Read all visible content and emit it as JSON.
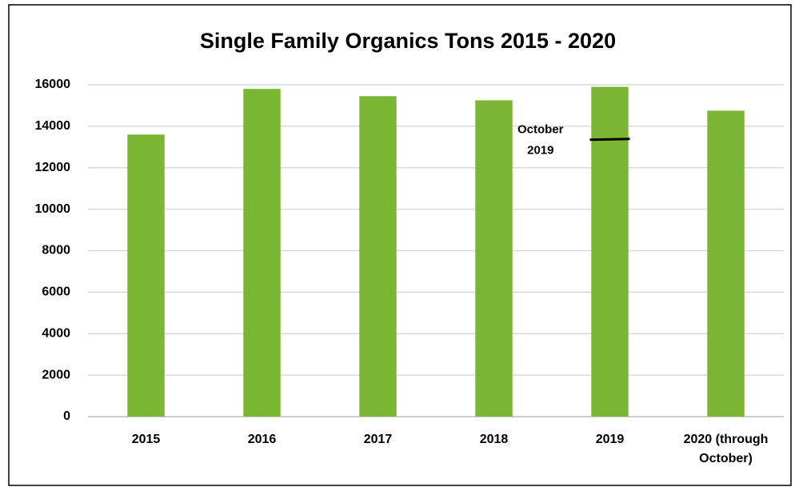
{
  "chart_data": {
    "type": "bar",
    "title": "Single Family Organics Tons 2015 - 2020",
    "categories": [
      "2015",
      "2016",
      "2017",
      "2018",
      "2019",
      "2020 (through October)"
    ],
    "values": [
      13600,
      15800,
      15450,
      15250,
      15900,
      14750
    ],
    "color": "#7ab534",
    "ylim": [
      0,
      16000
    ],
    "yticks": [
      0,
      2000,
      4000,
      6000,
      8000,
      10000,
      12000,
      14000,
      16000
    ],
    "grid": true,
    "annotation": {
      "lines": [
        "October",
        "2019"
      ],
      "category": "2019",
      "value": 13350
    }
  }
}
